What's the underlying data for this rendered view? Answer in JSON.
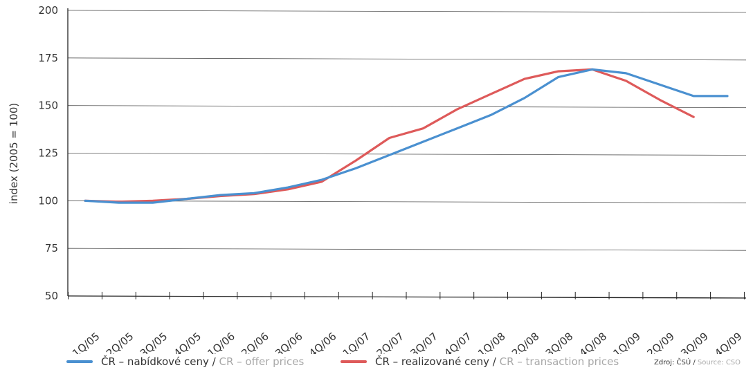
{
  "colors": {
    "offer": "#4a90d0",
    "transaction": "#de5a5a"
  },
  "chart_data": {
    "type": "line",
    "ylabel": "index (2005 = 100)",
    "xlabel": "",
    "ylim": [
      50,
      200
    ],
    "yticks": [
      50,
      75,
      100,
      125,
      150,
      175,
      200
    ],
    "grid": true,
    "categories": [
      "1Q/05",
      "2Q/05",
      "3Q/05",
      "4Q/05",
      "1Q/06",
      "2Q/06",
      "3Q/06",
      "4Q/06",
      "1Q/07",
      "2Q/07",
      "3Q/07",
      "4Q/07",
      "1Q/08",
      "2Q/08",
      "3Q/08",
      "4Q/08",
      "1Q/09",
      "2Q/09",
      "3Q/09",
      "4Q/09"
    ],
    "series": [
      {
        "name": "ČR – nabídkové ceny / CR – offer prices",
        "values": [
          100,
          99,
          99,
          101,
          103,
          104,
          107,
          111,
          117,
          124,
          131,
          138,
          145,
          154,
          165,
          169,
          167,
          161,
          155,
          155
        ]
      },
      {
        "name": "ČR – realizované ceny / CR – transaction prices",
        "values": [
          100,
          99.5,
          100,
          101,
          102.5,
          103.5,
          106,
          110,
          121,
          133,
          138,
          148,
          156,
          164,
          168,
          169,
          163,
          153,
          144,
          null
        ]
      }
    ]
  },
  "legend": {
    "offer_cz": "ČR – nabídkové ceny / ",
    "offer_en": "CR – offer prices",
    "transaction_cz": "ČR – realizované ceny / ",
    "transaction_en": "CR – transaction prices"
  },
  "source": {
    "cz": "Zdroj: ČSÚ / ",
    "en": "Source: CSO"
  }
}
